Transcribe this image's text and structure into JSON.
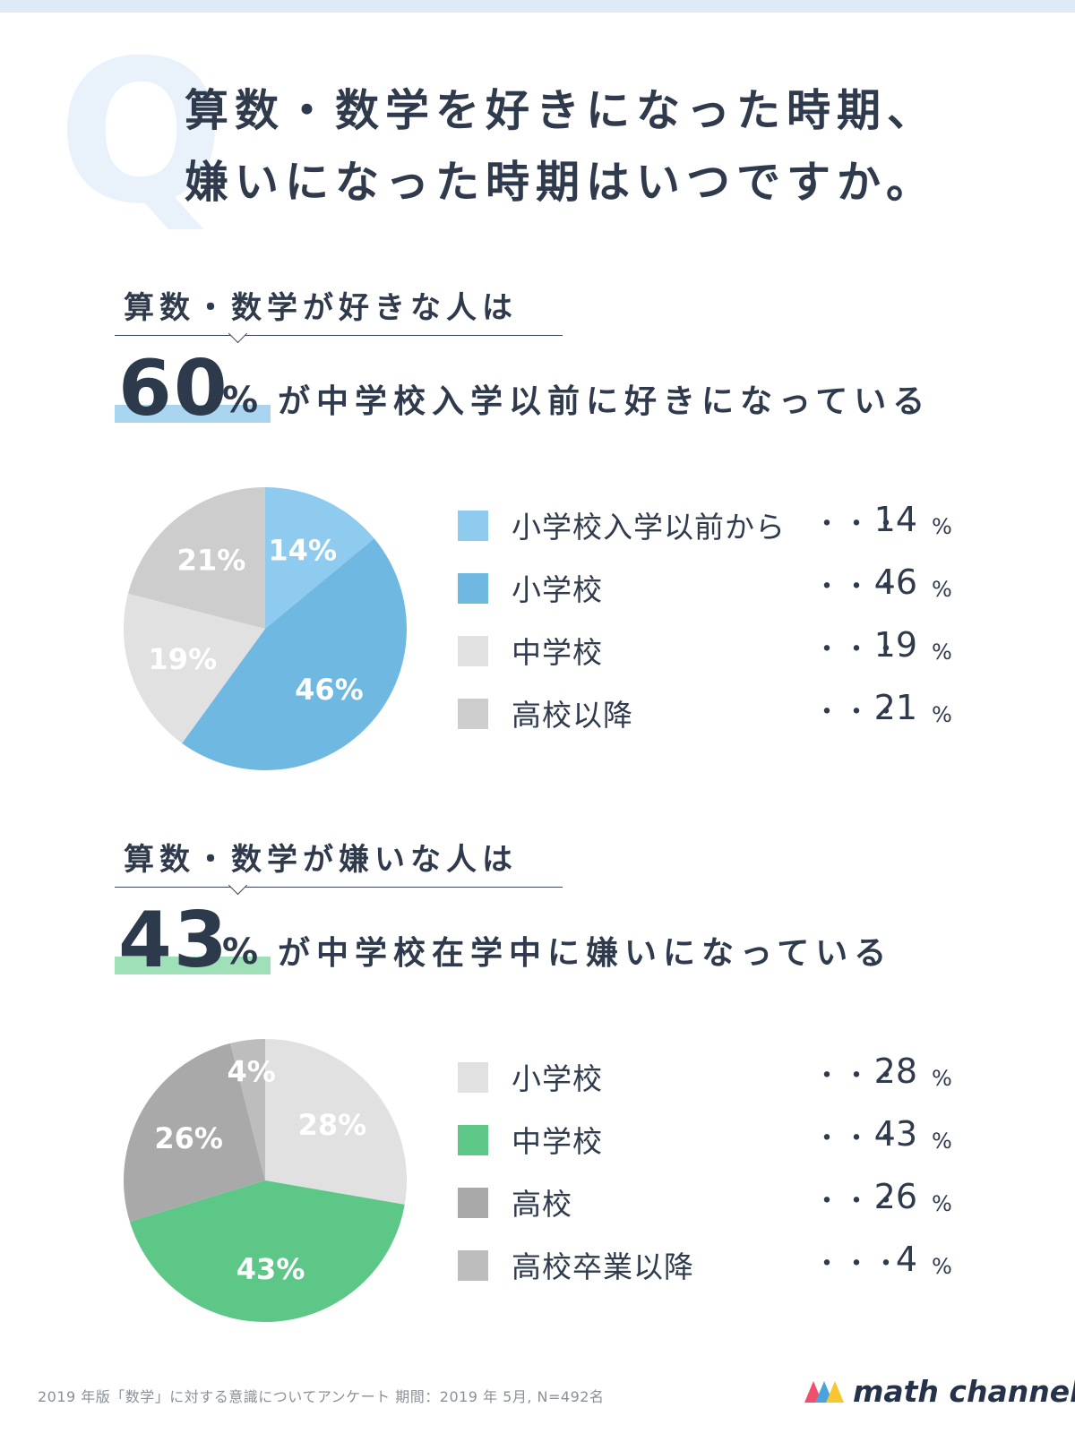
{
  "title": {
    "line1": "算数・数学を好きになった時期、",
    "line2": "嫌いになった時期はいつですか。",
    "q_mark": "Q"
  },
  "colors": {
    "like_light_blue": "#8fcbee",
    "like_blue": "#6fb8e2",
    "light_gray": "#e1e1e1",
    "mid_gray": "#cdcdcd",
    "dislike_green": "#5cc787",
    "dark_gray": "#a9a9a9",
    "hl_blue": "#a9d5f1",
    "hl_green": "#9fe0b8"
  },
  "like": {
    "label": "算数・数学が好きな人は",
    "big_number": "60",
    "unit": "%",
    "headline": "が中学校入学以前に好きになっている"
  },
  "dislike": {
    "label": "算数・数学が嫌いな人は",
    "big_number": "43",
    "unit": "%",
    "headline": "が中学校在学中に嫌いになっている"
  },
  "legend_dots": "・・・",
  "legend_unit": "%",
  "chart_data": [
    {
      "type": "pie",
      "categories": [
        "小学校入学以前から",
        "小学校",
        "中学校",
        "高校以降"
      ],
      "values": [
        14,
        46,
        19,
        21
      ],
      "slice_labels": [
        "14%",
        "46%",
        "19%",
        "21%"
      ],
      "colors": [
        "#8fcbee",
        "#6fb8e2",
        "#e1e1e1",
        "#cdcdcd"
      ],
      "label_colors": [
        "#ffffff",
        "#ffffff",
        "#ffffff",
        "#ffffff"
      ]
    },
    {
      "type": "pie",
      "categories": [
        "小学校",
        "中学校",
        "高校",
        "高校卒業以降"
      ],
      "values": [
        28,
        43,
        26,
        4
      ],
      "slice_labels": [
        "28%",
        "43%",
        "26%",
        "4%"
      ],
      "colors": [
        "#e1e1e1",
        "#5cc787",
        "#a9a9a9",
        "#bdbdbd"
      ],
      "label_colors": [
        "#ffffff",
        "#ffffff",
        "#ffffff",
        "#ffffff"
      ]
    }
  ],
  "footer": {
    "note": "2019 年版「数学」に対する意識についてアンケート 期間：2019 年 5月, N=492名",
    "brand": "math channel"
  }
}
